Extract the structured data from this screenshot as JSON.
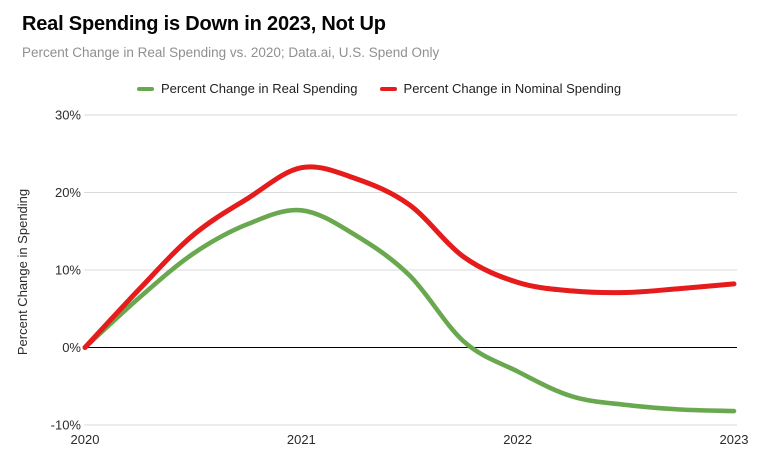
{
  "header": {
    "title": "Real Spending is Down in 2023, Not Up",
    "subtitle": "Percent Change in Real Spending vs. 2020; Data.ai, U.S. Spend Only"
  },
  "legend": {
    "items": [
      {
        "id": "real",
        "label": "Percent Change in Real Spending",
        "color": "#6aa84f"
      },
      {
        "id": "nominal",
        "label": "Percent Change in Nominal Spending",
        "color": "#e61c1c"
      }
    ]
  },
  "chart_data": {
    "type": "line",
    "title": "Real Spending is Down in 2023, Not Up",
    "subtitle": "Percent Change in Real Spending vs. 2020; Data.ai, U.S. Spend Only",
    "xlabel": "",
    "ylabel": "Percent Change in Spending",
    "xlim": [
      2020,
      2023
    ],
    "ylim": [
      -10,
      30
    ],
    "x_ticks": [
      "2020",
      "2021",
      "2022",
      "2023"
    ],
    "x_tick_values": [
      2020,
      2021,
      2022,
      2023
    ],
    "y_ticks": [
      "30%",
      "20%",
      "10%",
      "0%",
      "-10%"
    ],
    "y_tick_values": [
      30,
      20,
      10,
      0,
      -10
    ],
    "grid": "horizontal-only",
    "zero_line": true,
    "legend_position": "top-center",
    "unit": "percent vs. 2020",
    "x": [
      2020,
      2020.25,
      2020.5,
      2020.75,
      2021,
      2021.25,
      2021.5,
      2021.75,
      2022,
      2022.25,
      2022.5,
      2022.75,
      2023
    ],
    "series": [
      {
        "id": "real",
        "name": "Percent Change in Real Spending",
        "color": "#6aa84f",
        "values": [
          0,
          6.4,
          12.1,
          15.9,
          17.7,
          14.5,
          9.3,
          0.8,
          -3.1,
          -6.3,
          -7.4,
          -8.0,
          -8.2
        ]
      },
      {
        "id": "nominal",
        "name": "Percent Change in Nominal Spending",
        "color": "#e61c1c",
        "values": [
          0,
          7.5,
          14.5,
          19.2,
          23.2,
          21.8,
          18.4,
          11.7,
          8.4,
          7.3,
          7.1,
          7.6,
          8.2
        ]
      }
    ]
  },
  "colors": {
    "background": "#ffffff",
    "grid": "#d9d9d9",
    "zero_line": "#000000",
    "axis_text": "#2b2b2b",
    "title_text": "#050505",
    "subtitle_text": "#909090"
  }
}
